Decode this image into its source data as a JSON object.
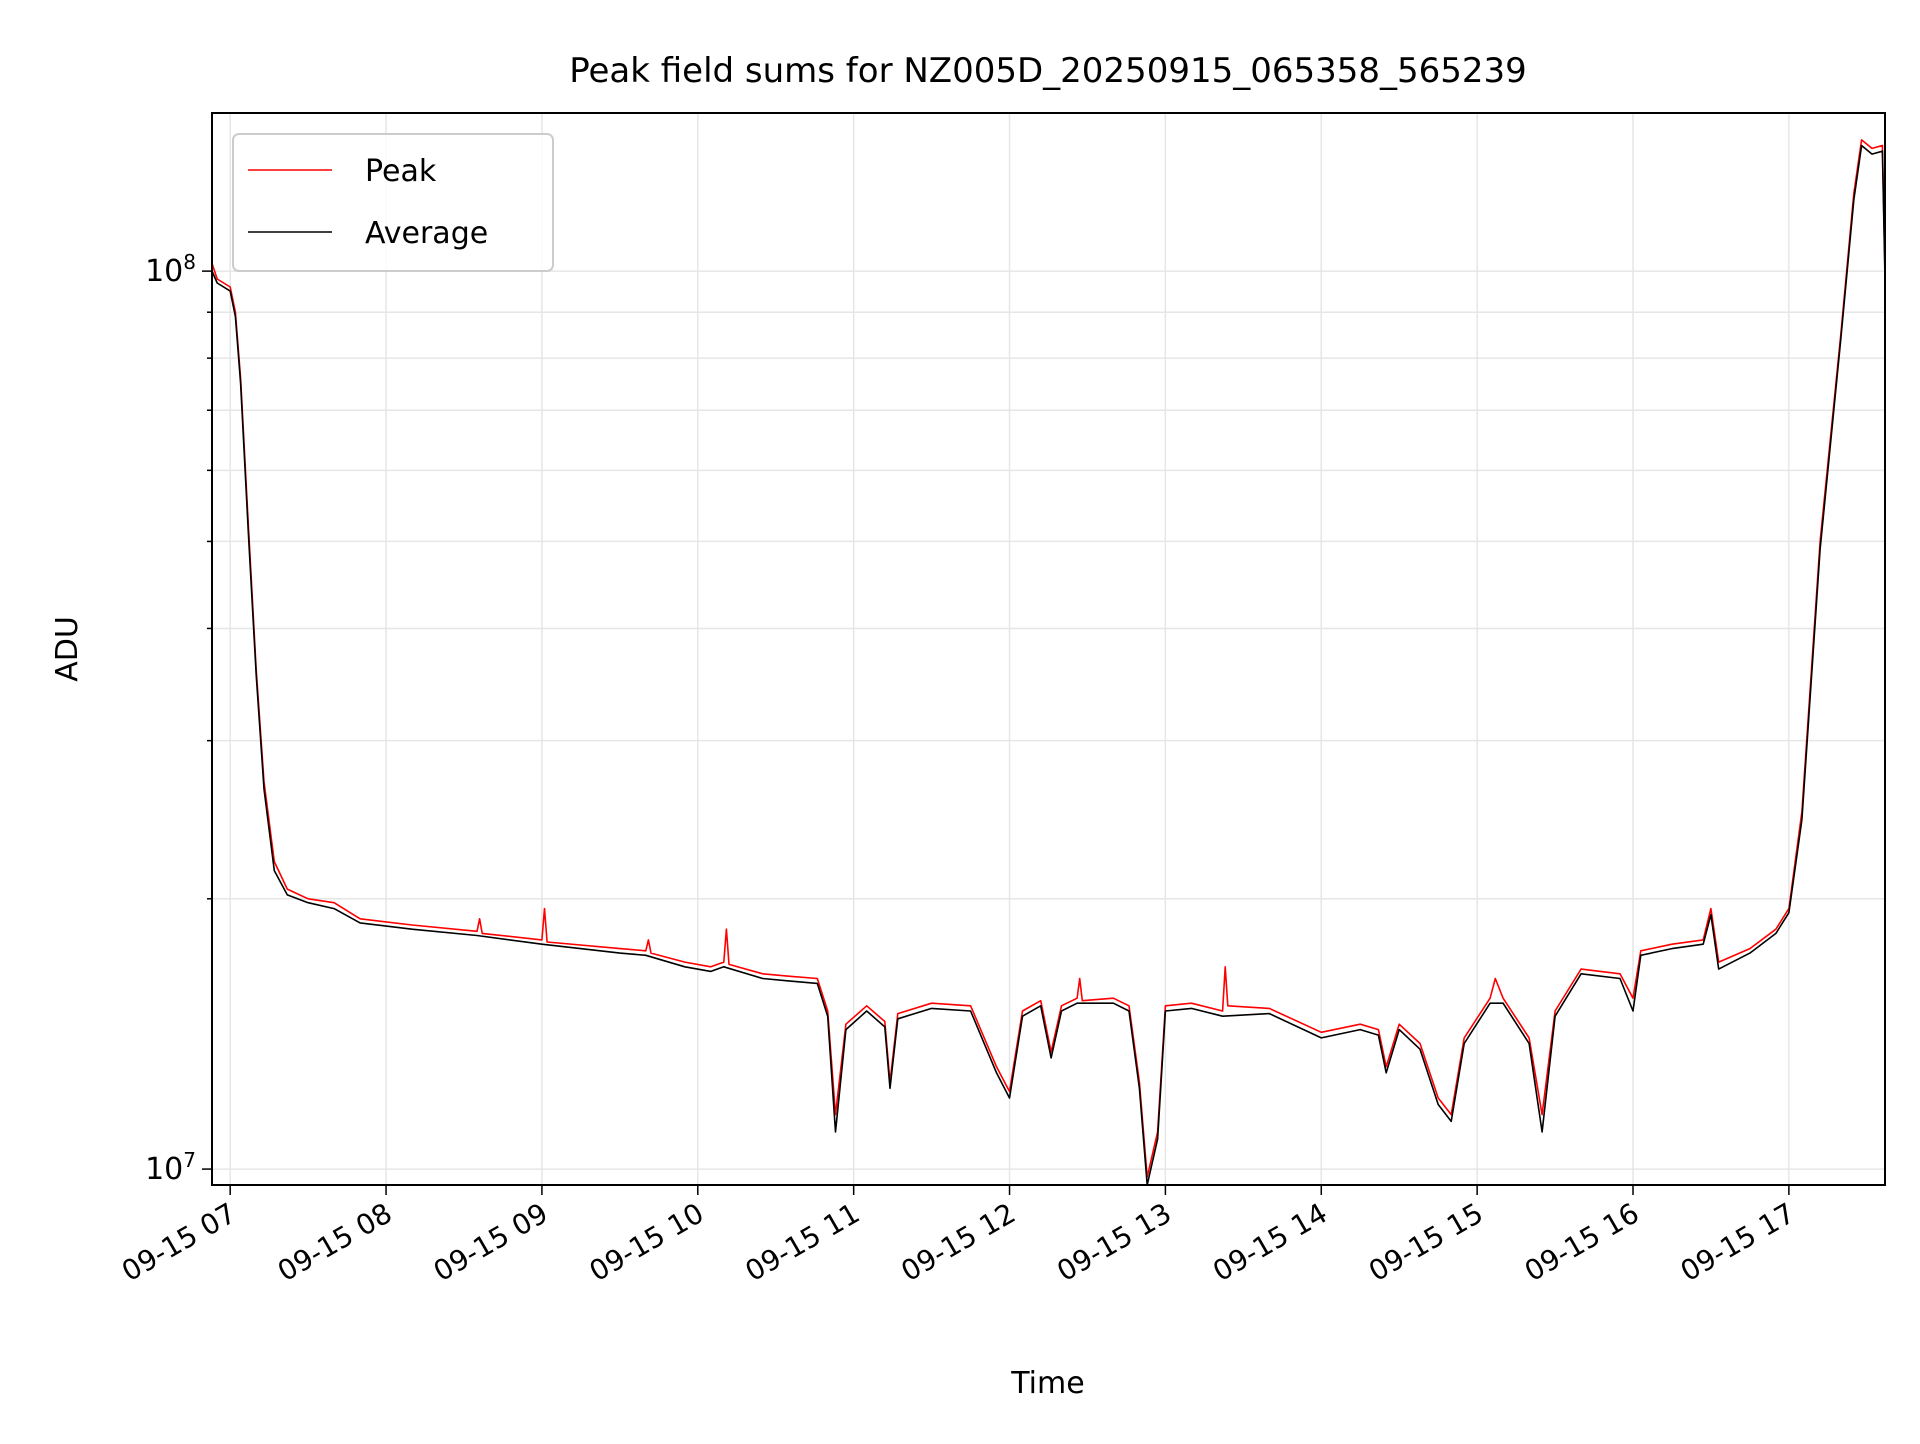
{
  "chart_data": {
    "type": "line",
    "title": "Peak field sums for NZ005D_20250915_065358_565239",
    "xlabel": "Time",
    "ylabel": "ADU",
    "yscale": "log",
    "grid": true,
    "legend_position": "top-left",
    "xlim": [
      "2025-09-15 06:53",
      "2025-09-15 17:37"
    ],
    "ylim": [
      9600000,
      150000000
    ],
    "x_ticks": [
      "09-15 07",
      "09-15 08",
      "09-15 09",
      "09-15 10",
      "09-15 11",
      "09-15 12",
      "09-15 13",
      "09-15 14",
      "09-15 15",
      "09-15 16",
      "09-15 17"
    ],
    "x_tick_times": [
      "2025-09-15 07:00",
      "2025-09-15 08:00",
      "2025-09-15 09:00",
      "2025-09-15 10:00",
      "2025-09-15 11:00",
      "2025-09-15 12:00",
      "2025-09-15 13:00",
      "2025-09-15 14:00",
      "2025-09-15 15:00",
      "2025-09-15 16:00",
      "2025-09-15 17:00"
    ],
    "y_ticks": [
      {
        "value": 10000000,
        "base": "10",
        "exp": "7"
      },
      {
        "value": 100000000,
        "base": "10",
        "exp": "8"
      }
    ],
    "series": [
      {
        "name": "Peak",
        "color": "#ff0000",
        "points": [
          [
            "2025-09-15 06:53",
            102000000
          ],
          [
            "2025-09-15 06:55",
            98000000
          ],
          [
            "2025-09-15 07:00",
            96000000
          ],
          [
            "2025-09-15 07:02",
            90000000
          ],
          [
            "2025-09-15 07:04",
            76000000
          ],
          [
            "2025-09-15 07:07",
            52000000
          ],
          [
            "2025-09-15 07:10",
            36000000
          ],
          [
            "2025-09-15 07:13",
            27000000
          ],
          [
            "2025-09-15 07:17",
            22000000
          ],
          [
            "2025-09-15 07:22",
            20500000
          ],
          [
            "2025-09-15 07:30",
            20000000
          ],
          [
            "2025-09-15 07:40",
            19800000
          ],
          [
            "2025-09-15 07:50",
            19000000
          ],
          [
            "2025-09-15 08:10",
            18700000
          ],
          [
            "2025-09-15 08:35",
            18400000
          ],
          [
            "2025-09-15 08:36",
            19000000
          ],
          [
            "2025-09-15 08:37",
            18300000
          ],
          [
            "2025-09-15 09:00",
            18000000
          ],
          [
            "2025-09-15 09:01",
            19500000
          ],
          [
            "2025-09-15 09:02",
            17900000
          ],
          [
            "2025-09-15 09:30",
            17600000
          ],
          [
            "2025-09-15 09:40",
            17500000
          ],
          [
            "2025-09-15 09:41",
            18000000
          ],
          [
            "2025-09-15 09:42",
            17400000
          ],
          [
            "2025-09-15 09:55",
            17000000
          ],
          [
            "2025-09-15 10:05",
            16800000
          ],
          [
            "2025-09-15 10:10",
            17000000
          ],
          [
            "2025-09-15 10:11",
            18500000
          ],
          [
            "2025-09-15 10:12",
            16900000
          ],
          [
            "2025-09-15 10:25",
            16500000
          ],
          [
            "2025-09-15 10:35",
            16400000
          ],
          [
            "2025-09-15 10:46",
            16300000
          ],
          [
            "2025-09-15 10:50",
            15000000
          ],
          [
            "2025-09-15 10:53",
            11500000
          ],
          [
            "2025-09-15 10:57",
            14500000
          ],
          [
            "2025-09-15 11:05",
            15200000
          ],
          [
            "2025-09-15 11:12",
            14600000
          ],
          [
            "2025-09-15 11:14",
            12500000
          ],
          [
            "2025-09-15 11:17",
            14900000
          ],
          [
            "2025-09-15 11:30",
            15300000
          ],
          [
            "2025-09-15 11:45",
            15200000
          ],
          [
            "2025-09-15 11:55",
            13000000
          ],
          [
            "2025-09-15 12:00",
            12200000
          ],
          [
            "2025-09-15 12:05",
            15000000
          ],
          [
            "2025-09-15 12:12",
            15400000
          ],
          [
            "2025-09-15 12:16",
            13500000
          ],
          [
            "2025-09-15 12:20",
            15200000
          ],
          [
            "2025-09-15 12:26",
            15500000
          ],
          [
            "2025-09-15 12:27",
            16300000
          ],
          [
            "2025-09-15 12:28",
            15400000
          ],
          [
            "2025-09-15 12:40",
            15500000
          ],
          [
            "2025-09-15 12:46",
            15200000
          ],
          [
            "2025-09-15 12:50",
            12500000
          ],
          [
            "2025-09-15 12:53",
            9800000
          ],
          [
            "2025-09-15 12:57",
            11000000
          ],
          [
            "2025-09-15 13:00",
            15200000
          ],
          [
            "2025-09-15 13:10",
            15300000
          ],
          [
            "2025-09-15 13:22",
            15000000
          ],
          [
            "2025-09-15 13:23",
            16800000
          ],
          [
            "2025-09-15 13:24",
            15200000
          ],
          [
            "2025-09-15 13:40",
            15100000
          ],
          [
            "2025-09-15 14:00",
            14200000
          ],
          [
            "2025-09-15 14:15",
            14500000
          ],
          [
            "2025-09-15 14:22",
            14300000
          ],
          [
            "2025-09-15 14:25",
            13000000
          ],
          [
            "2025-09-15 14:30",
            14500000
          ],
          [
            "2025-09-15 14:38",
            13800000
          ],
          [
            "2025-09-15 14:45",
            12000000
          ],
          [
            "2025-09-15 14:50",
            11500000
          ],
          [
            "2025-09-15 14:55",
            14000000
          ],
          [
            "2025-09-15 15:05",
            15500000
          ],
          [
            "2025-09-15 15:07",
            16300000
          ],
          [
            "2025-09-15 15:10",
            15500000
          ],
          [
            "2025-09-15 15:20",
            14000000
          ],
          [
            "2025-09-15 15:25",
            11500000
          ],
          [
            "2025-09-15 15:30",
            15000000
          ],
          [
            "2025-09-15 15:40",
            16700000
          ],
          [
            "2025-09-15 15:55",
            16500000
          ],
          [
            "2025-09-15 16:00",
            15500000
          ],
          [
            "2025-09-15 16:03",
            17500000
          ],
          [
            "2025-09-15 16:15",
            17800000
          ],
          [
            "2025-09-15 16:27",
            18000000
          ],
          [
            "2025-09-15 16:30",
            19500000
          ],
          [
            "2025-09-15 16:33",
            17000000
          ],
          [
            "2025-09-15 16:45",
            17600000
          ],
          [
            "2025-09-15 16:55",
            18500000
          ],
          [
            "2025-09-15 17:00",
            19500000
          ],
          [
            "2025-09-15 17:05",
            25000000
          ],
          [
            "2025-09-15 17:12",
            50000000
          ],
          [
            "2025-09-15 17:20",
            85000000
          ],
          [
            "2025-09-15 17:25",
            122000000
          ],
          [
            "2025-09-15 17:28",
            140000000
          ],
          [
            "2025-09-15 17:32",
            137000000
          ],
          [
            "2025-09-15 17:36",
            138000000
          ],
          [
            "2025-09-15 17:37",
            100000000
          ]
        ]
      },
      {
        "name": "Average",
        "color": "#000000",
        "points": [
          [
            "2025-09-15 06:53",
            100000000
          ],
          [
            "2025-09-15 06:55",
            97000000
          ],
          [
            "2025-09-15 07:00",
            95000000
          ],
          [
            "2025-09-15 07:02",
            89000000
          ],
          [
            "2025-09-15 07:04",
            75000000
          ],
          [
            "2025-09-15 07:07",
            51000000
          ],
          [
            "2025-09-15 07:10",
            35500000
          ],
          [
            "2025-09-15 07:13",
            26500000
          ],
          [
            "2025-09-15 07:17",
            21500000
          ],
          [
            "2025-09-15 07:22",
            20200000
          ],
          [
            "2025-09-15 07:30",
            19800000
          ],
          [
            "2025-09-15 07:40",
            19500000
          ],
          [
            "2025-09-15 07:50",
            18800000
          ],
          [
            "2025-09-15 08:10",
            18500000
          ],
          [
            "2025-09-15 08:35",
            18200000
          ],
          [
            "2025-09-15 09:00",
            17800000
          ],
          [
            "2025-09-15 09:30",
            17400000
          ],
          [
            "2025-09-15 09:40",
            17300000
          ],
          [
            "2025-09-15 09:55",
            16800000
          ],
          [
            "2025-09-15 10:05",
            16600000
          ],
          [
            "2025-09-15 10:10",
            16800000
          ],
          [
            "2025-09-15 10:25",
            16300000
          ],
          [
            "2025-09-15 10:35",
            16200000
          ],
          [
            "2025-09-15 10:46",
            16100000
          ],
          [
            "2025-09-15 10:50",
            14800000
          ],
          [
            "2025-09-15 10:53",
            11000000
          ],
          [
            "2025-09-15 10:57",
            14300000
          ],
          [
            "2025-09-15 11:05",
            15000000
          ],
          [
            "2025-09-15 11:12",
            14400000
          ],
          [
            "2025-09-15 11:14",
            12300000
          ],
          [
            "2025-09-15 11:17",
            14700000
          ],
          [
            "2025-09-15 11:30",
            15100000
          ],
          [
            "2025-09-15 11:45",
            15000000
          ],
          [
            "2025-09-15 11:55",
            12800000
          ],
          [
            "2025-09-15 12:00",
            12000000
          ],
          [
            "2025-09-15 12:05",
            14800000
          ],
          [
            "2025-09-15 12:12",
            15200000
          ],
          [
            "2025-09-15 12:16",
            13300000
          ],
          [
            "2025-09-15 12:20",
            15000000
          ],
          [
            "2025-09-15 12:26",
            15300000
          ],
          [
            "2025-09-15 12:40",
            15300000
          ],
          [
            "2025-09-15 12:46",
            15000000
          ],
          [
            "2025-09-15 12:50",
            12300000
          ],
          [
            "2025-09-15 12:53",
            9600000
          ],
          [
            "2025-09-15 12:57",
            10800000
          ],
          [
            "2025-09-15 13:00",
            15000000
          ],
          [
            "2025-09-15 13:10",
            15100000
          ],
          [
            "2025-09-15 13:22",
            14800000
          ],
          [
            "2025-09-15 13:40",
            14900000
          ],
          [
            "2025-09-15 14:00",
            14000000
          ],
          [
            "2025-09-15 14:15",
            14300000
          ],
          [
            "2025-09-15 14:22",
            14100000
          ],
          [
            "2025-09-15 14:25",
            12800000
          ],
          [
            "2025-09-15 14:30",
            14300000
          ],
          [
            "2025-09-15 14:38",
            13600000
          ],
          [
            "2025-09-15 14:45",
            11800000
          ],
          [
            "2025-09-15 14:50",
            11300000
          ],
          [
            "2025-09-15 14:55",
            13800000
          ],
          [
            "2025-09-15 15:05",
            15300000
          ],
          [
            "2025-09-15 15:10",
            15300000
          ],
          [
            "2025-09-15 15:20",
            13800000
          ],
          [
            "2025-09-15 15:25",
            11000000
          ],
          [
            "2025-09-15 15:30",
            14800000
          ],
          [
            "2025-09-15 15:40",
            16500000
          ],
          [
            "2025-09-15 15:55",
            16300000
          ],
          [
            "2025-09-15 16:00",
            15000000
          ],
          [
            "2025-09-15 16:03",
            17300000
          ],
          [
            "2025-09-15 16:15",
            17600000
          ],
          [
            "2025-09-15 16:27",
            17800000
          ],
          [
            "2025-09-15 16:30",
            19200000
          ],
          [
            "2025-09-15 16:33",
            16700000
          ],
          [
            "2025-09-15 16:45",
            17400000
          ],
          [
            "2025-09-15 16:55",
            18300000
          ],
          [
            "2025-09-15 17:00",
            19300000
          ],
          [
            "2025-09-15 17:05",
            24500000
          ],
          [
            "2025-09-15 17:12",
            49000000
          ],
          [
            "2025-09-15 17:20",
            84000000
          ],
          [
            "2025-09-15 17:25",
            120000000
          ],
          [
            "2025-09-15 17:28",
            138000000
          ],
          [
            "2025-09-15 17:32",
            135000000
          ],
          [
            "2025-09-15 17:36",
            136000000
          ],
          [
            "2025-09-15 17:37",
            98000000
          ]
        ]
      }
    ]
  }
}
